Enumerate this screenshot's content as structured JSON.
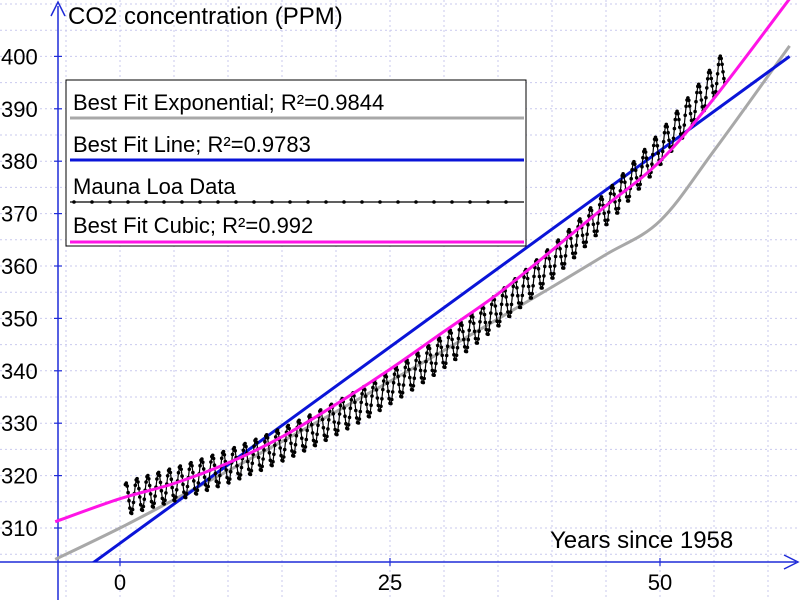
{
  "chart_data": {
    "type": "line",
    "title": "",
    "xlabel": "Years since 1958",
    "ylabel": "CO2 concentration (PPM)",
    "xlim": [
      -6,
      62
    ],
    "ylim": [
      303,
      411
    ],
    "x_ticks": [
      0,
      25,
      50
    ],
    "y_ticks": [
      310,
      320,
      330,
      340,
      350,
      360,
      370,
      380,
      390,
      400
    ],
    "grid": true,
    "legend_position": "top-left",
    "series": [
      {
        "name": "Best Fit Exponential; R²=0.9844",
        "kind": "exponential_fit",
        "color": "#a8a8a8",
        "x": [
          -6,
          0,
          5,
          10,
          15,
          20,
          25,
          30,
          35,
          40,
          45,
          50,
          55,
          62
        ],
        "y": [
          304,
          310,
          315.4,
          320.9,
          326.5,
          332.2,
          338,
          343.9,
          349.9,
          356,
          362.2,
          368.6,
          382,
          402
        ]
      },
      {
        "name": "Best Fit Line; R²=0.9783",
        "kind": "linear_fit",
        "color": "#0a14d8",
        "x": [
          -3,
          62
        ],
        "y": [
          302.6,
          400
        ]
      },
      {
        "name": "Mauna Loa Data",
        "kind": "monthly_observations",
        "color": "#000000",
        "x": [
          0.5,
          1,
          2,
          3,
          4,
          5,
          6,
          7,
          8,
          9,
          10,
          11,
          12,
          13,
          14,
          15,
          16,
          17,
          18,
          19,
          20,
          21,
          22,
          23,
          24,
          25,
          26,
          27,
          28,
          29,
          30,
          31,
          32,
          33,
          34,
          35,
          36,
          37,
          38,
          39,
          40,
          41,
          42,
          43,
          44,
          45,
          46,
          47,
          48,
          49,
          50,
          51,
          52,
          53,
          54,
          55,
          56
        ],
        "y": [
          315.3,
          315.9,
          316.5,
          317.1,
          317.7,
          318.3,
          318.9,
          319.6,
          320.3,
          321,
          321.7,
          322.5,
          323.3,
          324.1,
          325,
          325.9,
          326.8,
          327.8,
          328.8,
          329.8,
          330.9,
          332,
          333.1,
          334.3,
          335.5,
          336.8,
          338.1,
          339.4,
          340.8,
          342.2,
          343.7,
          345.2,
          346.7,
          348.3,
          350,
          351.6,
          353.4,
          355.1,
          356.9,
          358.8,
          360.7,
          362.6,
          364.6,
          366.7,
          368.8,
          370.9,
          373.1,
          375.4,
          377.7,
          380,
          382.4,
          384.9,
          387.4,
          390,
          392.6,
          395.3,
          398
        ],
        "seasonal_amplitude": 3.2
      },
      {
        "name": "Best Fit Cubic; R²=0.992",
        "kind": "cubic_fit",
        "color": "#ff14e6",
        "x": [
          -6,
          0,
          5,
          10,
          15,
          20,
          25,
          30,
          35,
          40,
          45,
          50,
          55,
          62
        ],
        "y": [
          311.2,
          315.6,
          318.5,
          322.4,
          327.4,
          333.6,
          340.3,
          347.5,
          354.7,
          363,
          371.5,
          380,
          392,
          411
        ]
      }
    ]
  }
}
